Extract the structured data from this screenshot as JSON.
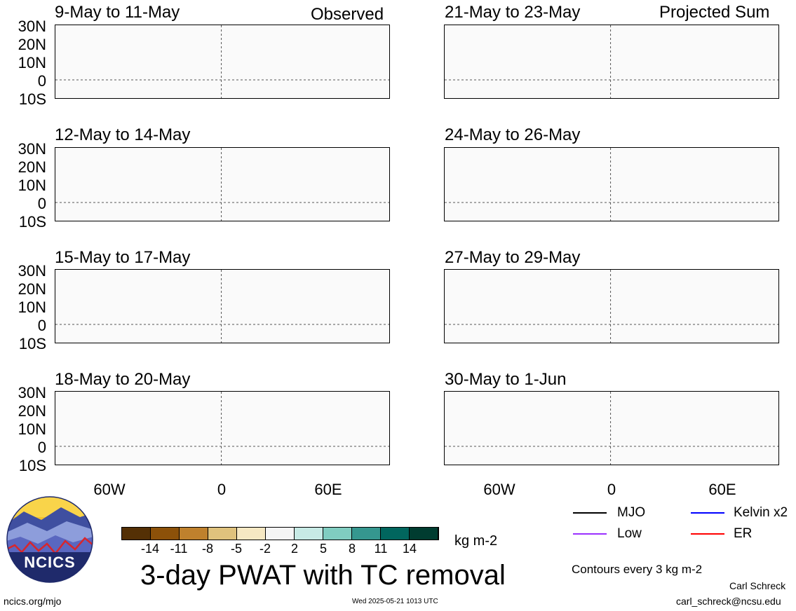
{
  "header": {
    "observed_label": "Observed",
    "projected_label": "Projected Sum"
  },
  "panels": [
    {
      "period": "9-May to 11-May",
      "column": "observed",
      "row": 0
    },
    {
      "period": "12-May to 14-May",
      "column": "observed",
      "row": 1
    },
    {
      "period": "15-May to 17-May",
      "column": "observed",
      "row": 2
    },
    {
      "period": "18-May to 20-May",
      "column": "observed",
      "row": 3
    },
    {
      "period": "21-May to 23-May",
      "column": "projected",
      "row": 0
    },
    {
      "period": "24-May to 26-May",
      "column": "projected",
      "row": 1
    },
    {
      "period": "27-May to 29-May",
      "column": "projected",
      "row": 2
    },
    {
      "period": "30-May to 1-Jun",
      "column": "projected",
      "row": 3
    }
  ],
  "latitude_labels": [
    "30N",
    "20N",
    "10N",
    "0",
    "10S"
  ],
  "longitude_labels": [
    "60W",
    "0",
    "60E"
  ],
  "colorbar": {
    "colors": [
      "#543005",
      "#8c5109",
      "#bf812d",
      "#dfc27d",
      "#f6e8c3",
      "#f5f5f5",
      "#c7eae5",
      "#80cdc1",
      "#35978f",
      "#01665e",
      "#003c30"
    ],
    "tick_labels": [
      "-14",
      "-11",
      "-8",
      "-5",
      "-2",
      "2",
      "5",
      "8",
      "11",
      "14"
    ],
    "units": "kg m-2"
  },
  "legend": {
    "items": [
      {
        "label": "MJO",
        "color": "#000000"
      },
      {
        "label": "Kelvin x2",
        "color": "#0000ff"
      },
      {
        "label": "Low",
        "color": "#9b30ff"
      },
      {
        "label": "ER",
        "color": "#ff0000"
      }
    ],
    "contour_note": "Contours every 3 kg m-2"
  },
  "title": "3-day PWAT with TC removal",
  "logo": {
    "text": "NCICS"
  },
  "footer": {
    "url": "ncics.org/mjo",
    "timestamp": "Wed 2025-05-21 1013 UTC",
    "author": "Carl Schreck",
    "email": "carl_schreck@ncsu.edu"
  }
}
